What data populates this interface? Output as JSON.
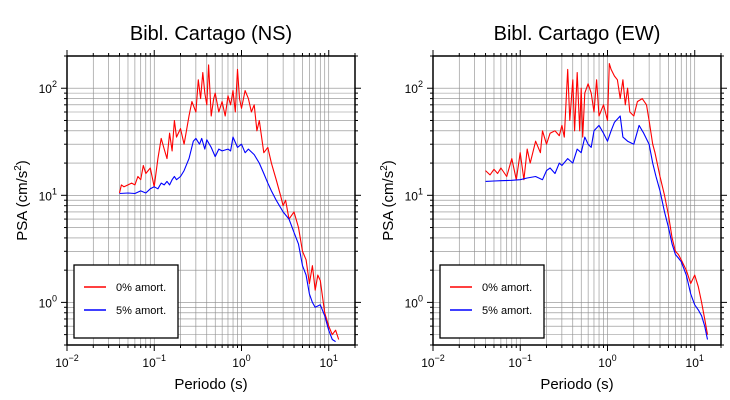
{
  "chart_data": [
    {
      "type": "line",
      "title": "Bibl. Cartago (NS)",
      "xlabel": "Periodo (s)",
      "ylabel": "PSA (cm/s",
      "ylabel_sup": "2",
      "ylabel_close": ")",
      "xscale": "log",
      "yscale": "log",
      "xlim": [
        0.01,
        20
      ],
      "ylim": [
        0.4,
        200
      ],
      "grid": true,
      "legend_position": "bottom-left",
      "x_ticks": [
        {
          "base": "10",
          "exp": "−2"
        },
        {
          "base": "10",
          "exp": "−1"
        },
        {
          "base": "10",
          "exp": "0"
        },
        {
          "base": "10",
          "exp": "1"
        }
      ],
      "y_ticks": [
        {
          "base": "10",
          "exp": "0"
        },
        {
          "base": "10",
          "exp": "1"
        },
        {
          "base": "10",
          "exp": "2"
        }
      ],
      "series": [
        {
          "name": "0% amort.",
          "color": "#ff0000",
          "points": [
            [
              0.04,
              10.5
            ],
            [
              0.042,
              12.5
            ],
            [
              0.045,
              12
            ],
            [
              0.05,
              12.5
            ],
            [
              0.055,
              13
            ],
            [
              0.06,
              12.5
            ],
            [
              0.065,
              15
            ],
            [
              0.07,
              14
            ],
            [
              0.075,
              19
            ],
            [
              0.08,
              16
            ],
            [
              0.09,
              18
            ],
            [
              0.1,
              12
            ],
            [
              0.11,
              22
            ],
            [
              0.12,
              34
            ],
            [
              0.13,
              27
            ],
            [
              0.14,
              22
            ],
            [
              0.15,
              38
            ],
            [
              0.16,
              26
            ],
            [
              0.17,
              50
            ],
            [
              0.18,
              35
            ],
            [
              0.2,
              42
            ],
            [
              0.22,
              30
            ],
            [
              0.25,
              55
            ],
            [
              0.27,
              75
            ],
            [
              0.3,
              60
            ],
            [
              0.32,
              120
            ],
            [
              0.34,
              80
            ],
            [
              0.36,
              140
            ],
            [
              0.38,
              90
            ],
            [
              0.4,
              70
            ],
            [
              0.42,
              165
            ],
            [
              0.45,
              55
            ],
            [
              0.48,
              80
            ],
            [
              0.5,
              90
            ],
            [
              0.55,
              60
            ],
            [
              0.6,
              75
            ],
            [
              0.65,
              55
            ],
            [
              0.7,
              85
            ],
            [
              0.75,
              70
            ],
            [
              0.8,
              95
            ],
            [
              0.85,
              60
            ],
            [
              0.9,
              150
            ],
            [
              0.95,
              80
            ],
            [
              1.0,
              65
            ],
            [
              1.1,
              95
            ],
            [
              1.2,
              80
            ],
            [
              1.3,
              60
            ],
            [
              1.4,
              70
            ],
            [
              1.5,
              40
            ],
            [
              1.6,
              50
            ],
            [
              1.7,
              35
            ],
            [
              1.8,
              25
            ],
            [
              2.0,
              28
            ],
            [
              2.2,
              20
            ],
            [
              2.5,
              14
            ],
            [
              2.8,
              10
            ],
            [
              3.0,
              8
            ],
            [
              3.2,
              9
            ],
            [
              3.5,
              6
            ],
            [
              4.0,
              7
            ],
            [
              4.5,
              5
            ],
            [
              5.0,
              3
            ],
            [
              5.5,
              2.5
            ],
            [
              6.0,
              1.5
            ],
            [
              6.5,
              2.2
            ],
            [
              7.0,
              1.3
            ],
            [
              7.5,
              1.8
            ],
            [
              8.0,
              1.6
            ],
            [
              9.0,
              0.8
            ],
            [
              10.0,
              0.6
            ],
            [
              11.0,
              0.5
            ],
            [
              12.0,
              0.55
            ],
            [
              13.0,
              0.45
            ]
          ]
        },
        {
          "name": "5% amort.",
          "color": "#0000ff",
          "points": [
            [
              0.04,
              10.4
            ],
            [
              0.05,
              10.5
            ],
            [
              0.06,
              10.4
            ],
            [
              0.07,
              11
            ],
            [
              0.08,
              10.5
            ],
            [
              0.09,
              11.5
            ],
            [
              0.1,
              12
            ],
            [
              0.11,
              11.5
            ],
            [
              0.12,
              13
            ],
            [
              0.13,
              12.5
            ],
            [
              0.14,
              13.5
            ],
            [
              0.15,
              12.5
            ],
            [
              0.16,
              14
            ],
            [
              0.17,
              15
            ],
            [
              0.18,
              14
            ],
            [
              0.2,
              15
            ],
            [
              0.22,
              17
            ],
            [
              0.25,
              22
            ],
            [
              0.28,
              32
            ],
            [
              0.3,
              34
            ],
            [
              0.33,
              30
            ],
            [
              0.35,
              34
            ],
            [
              0.38,
              27
            ],
            [
              0.4,
              33
            ],
            [
              0.45,
              28
            ],
            [
              0.5,
              23
            ],
            [
              0.55,
              27
            ],
            [
              0.6,
              26
            ],
            [
              0.7,
              27
            ],
            [
              0.75,
              26
            ],
            [
              0.8,
              35
            ],
            [
              0.9,
              28
            ],
            [
              1.0,
              30
            ],
            [
              1.1,
              25
            ],
            [
              1.2,
              27
            ],
            [
              1.4,
              24
            ],
            [
              1.6,
              20
            ],
            [
              1.8,
              16
            ],
            [
              2.0,
              13
            ],
            [
              2.2,
              11
            ],
            [
              2.5,
              9
            ],
            [
              3.0,
              7
            ],
            [
              3.5,
              6
            ],
            [
              4.0,
              4.5
            ],
            [
              4.5,
              3.5
            ],
            [
              5.0,
              2.2
            ],
            [
              5.5,
              1.8
            ],
            [
              6.0,
              1.2
            ],
            [
              6.5,
              1.0
            ],
            [
              7.0,
              0.9
            ],
            [
              8.0,
              0.95
            ],
            [
              9.0,
              0.75
            ],
            [
              10.0,
              0.55
            ],
            [
              11.0,
              0.45
            ],
            [
              12.0,
              0.43
            ]
          ]
        }
      ]
    },
    {
      "type": "line",
      "title": "Bibl. Cartago (EW)",
      "xlabel": "Periodo (s)",
      "ylabel": "PSA (cm/s",
      "ylabel_sup": "2",
      "ylabel_close": ")",
      "xscale": "log",
      "yscale": "log",
      "xlim": [
        0.01,
        20
      ],
      "ylim": [
        0.4,
        200
      ],
      "grid": true,
      "legend_position": "bottom-left",
      "x_ticks": [
        {
          "base": "10",
          "exp": "−2"
        },
        {
          "base": "10",
          "exp": "−1"
        },
        {
          "base": "10",
          "exp": "0"
        },
        {
          "base": "10",
          "exp": "1"
        }
      ],
      "y_ticks": [
        {
          "base": "10",
          "exp": "0"
        },
        {
          "base": "10",
          "exp": "1"
        },
        {
          "base": "10",
          "exp": "2"
        }
      ],
      "series": [
        {
          "name": "0% amort.",
          "color": "#ff0000",
          "points": [
            [
              0.04,
              17
            ],
            [
              0.045,
              15.5
            ],
            [
              0.05,
              17.5
            ],
            [
              0.055,
              16
            ],
            [
              0.06,
              18
            ],
            [
              0.07,
              15
            ],
            [
              0.08,
              22
            ],
            [
              0.09,
              14
            ],
            [
              0.1,
              25
            ],
            [
              0.11,
              14
            ],
            [
              0.12,
              27
            ],
            [
              0.13,
              20
            ],
            [
              0.15,
              32
            ],
            [
              0.17,
              25
            ],
            [
              0.18,
              40
            ],
            [
              0.2,
              30
            ],
            [
              0.22,
              38
            ],
            [
              0.25,
              40
            ],
            [
              0.28,
              36
            ],
            [
              0.3,
              45
            ],
            [
              0.32,
              35
            ],
            [
              0.35,
              150
            ],
            [
              0.37,
              50
            ],
            [
              0.4,
              120
            ],
            [
              0.42,
              40
            ],
            [
              0.45,
              140
            ],
            [
              0.48,
              40
            ],
            [
              0.5,
              100
            ],
            [
              0.52,
              35
            ],
            [
              0.55,
              90
            ],
            [
              0.6,
              110
            ],
            [
              0.65,
              90
            ],
            [
              0.7,
              60
            ],
            [
              0.75,
              120
            ],
            [
              0.8,
              55
            ],
            [
              0.9,
              70
            ],
            [
              1.0,
              50
            ],
            [
              1.05,
              170
            ],
            [
              1.1,
              150
            ],
            [
              1.2,
              130
            ],
            [
              1.3,
              120
            ],
            [
              1.4,
              80
            ],
            [
              1.5,
              120
            ],
            [
              1.6,
              70
            ],
            [
              1.7,
              100
            ],
            [
              1.8,
              60
            ],
            [
              2.0,
              55
            ],
            [
              2.2,
              75
            ],
            [
              2.5,
              80
            ],
            [
              2.8,
              70
            ],
            [
              3.0,
              50
            ],
            [
              3.3,
              30
            ],
            [
              3.5,
              25
            ],
            [
              4.0,
              15
            ],
            [
              4.5,
              10
            ],
            [
              5.0,
              6.5
            ],
            [
              5.5,
              4
            ],
            [
              6.0,
              3
            ],
            [
              6.5,
              2.8
            ],
            [
              7.0,
              2.5
            ],
            [
              8.0,
              2.0
            ],
            [
              9.0,
              1.5
            ],
            [
              10.0,
              1.8
            ],
            [
              11.0,
              1.4
            ],
            [
              12.0,
              1.0
            ],
            [
              13.0,
              0.7
            ],
            [
              14.0,
              0.5
            ]
          ]
        },
        {
          "name": "5% amort.",
          "color": "#0000ff",
          "points": [
            [
              0.04,
              13.5
            ],
            [
              0.05,
              13.6
            ],
            [
              0.06,
              13.7
            ],
            [
              0.08,
              13.8
            ],
            [
              0.1,
              14
            ],
            [
              0.12,
              14.5
            ],
            [
              0.15,
              15
            ],
            [
              0.18,
              14
            ],
            [
              0.2,
              17
            ],
            [
              0.22,
              18
            ],
            [
              0.25,
              16
            ],
            [
              0.28,
              20
            ],
            [
              0.3,
              19
            ],
            [
              0.35,
              22
            ],
            [
              0.4,
              20
            ],
            [
              0.45,
              27
            ],
            [
              0.5,
              25
            ],
            [
              0.55,
              35
            ],
            [
              0.6,
              30
            ],
            [
              0.65,
              28
            ],
            [
              0.7,
              40
            ],
            [
              0.8,
              45
            ],
            [
              0.9,
              38
            ],
            [
              1.0,
              32
            ],
            [
              1.1,
              40
            ],
            [
              1.2,
              48
            ],
            [
              1.4,
              55
            ],
            [
              1.5,
              35
            ],
            [
              1.7,
              32
            ],
            [
              2.0,
              30
            ],
            [
              2.3,
              45
            ],
            [
              2.6,
              38
            ],
            [
              3.0,
              30
            ],
            [
              3.3,
              20
            ],
            [
              3.6,
              15
            ],
            [
              4.0,
              11
            ],
            [
              4.5,
              7
            ],
            [
              5.0,
              5
            ],
            [
              5.5,
              3.5
            ],
            [
              6.0,
              2.8
            ],
            [
              6.5,
              2.6
            ],
            [
              7.0,
              2.4
            ],
            [
              8.0,
              1.8
            ],
            [
              9.0,
              1.2
            ],
            [
              10.0,
              0.95
            ],
            [
              11.0,
              0.85
            ],
            [
              12.0,
              0.75
            ],
            [
              13.0,
              0.6
            ],
            [
              14.0,
              0.45
            ]
          ]
        }
      ]
    }
  ]
}
